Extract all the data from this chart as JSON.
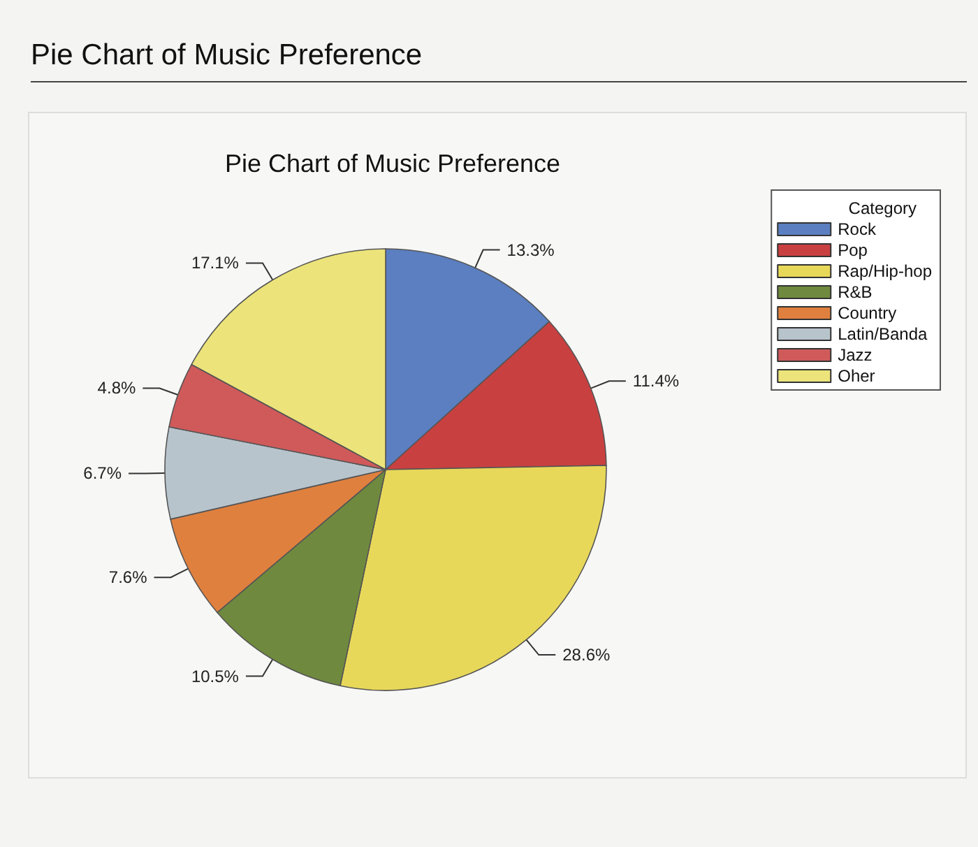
{
  "chart_data": {
    "type": "pie",
    "title": "Pie Chart of Music Preference",
    "subtitle": "Pie Chart of Music Preference",
    "legend_title": "Category",
    "legend": "top right",
    "categories": [
      "Rock",
      "Pop",
      "Rap/Hip-hop",
      "R&B",
      "Country",
      "Latin/Banda",
      "Jazz",
      "Oher"
    ],
    "values": [
      13.3,
      11.4,
      28.6,
      10.5,
      7.6,
      6.7,
      4.8,
      17.1
    ],
    "value_labels": [
      "13.3%",
      "11.4%",
      "28.6%",
      "10.5%",
      "7.6%",
      "6.7%",
      "4.8%",
      "17.1%"
    ],
    "colors": [
      "#5b7fc0",
      "#c94040",
      "#e8d85a",
      "#6f8a3e",
      "#e0803e",
      "#b8c4cc",
      "#d05a5a",
      "#ece47a"
    ]
  }
}
